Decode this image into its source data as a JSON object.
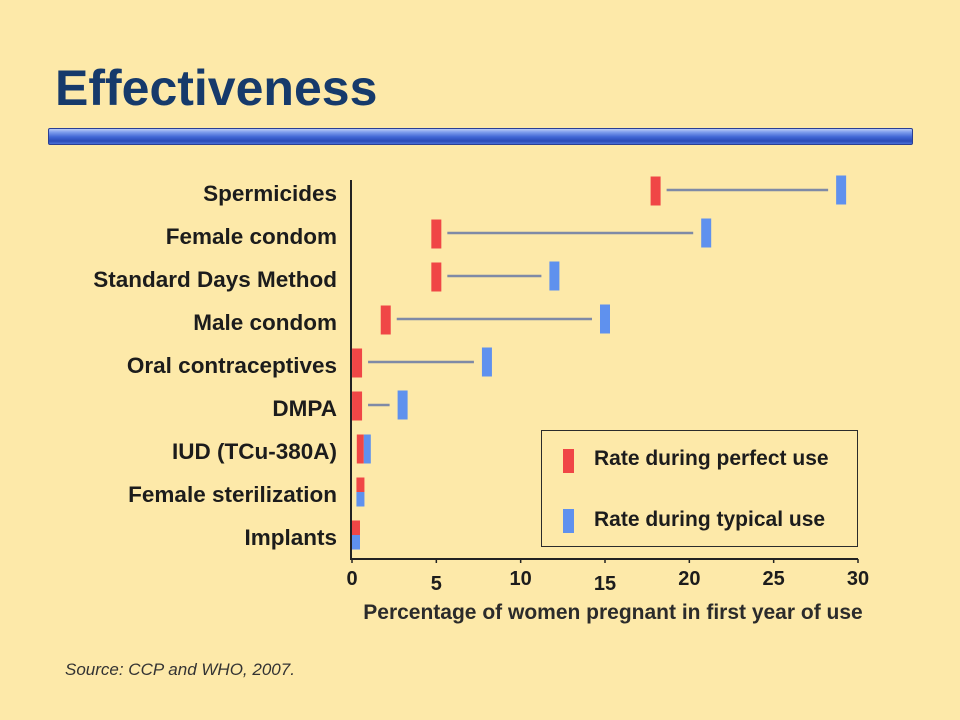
{
  "colors": {
    "background": "#FDE9A9",
    "title": "#163A6B",
    "connector": "#7F8AA6"
  },
  "chart_data": {
    "type": "scatter",
    "title": "Effectiveness",
    "categories": [
      "Spermicides",
      "Female condom",
      "Standard Days Method",
      "Male condom",
      "Oral contraceptives",
      "DMPA",
      "IUD (TCu-380A)",
      "Female sterilization",
      "Implants"
    ],
    "series": [
      {
        "name": "Rate during perfect use",
        "color": "#F04646",
        "values": [
          18,
          5,
          5,
          2,
          0.3,
          0.3,
          0.6,
          0.5,
          0.05
        ]
      },
      {
        "name": "Rate during typical use",
        "color": "#5F91EE",
        "values": [
          29,
          21,
          12,
          15,
          8,
          3,
          0.8,
          0.5,
          0.05
        ]
      }
    ],
    "xlabel": "Percentage of women pregnant in first year of use",
    "xlim": [
      0,
      30
    ],
    "xticks": [
      0,
      5,
      10,
      15,
      20,
      25,
      30
    ],
    "grid": false,
    "legend": "bottom-right",
    "source": "Source: CCP and WHO, 2007."
  }
}
